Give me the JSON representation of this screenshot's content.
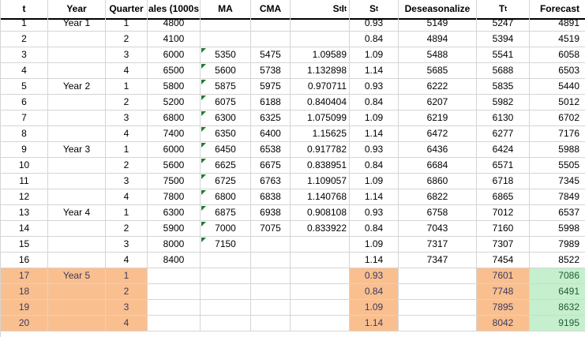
{
  "app": {
    "description": "Spreadsheet: quarterly sales seasonal decomposition and Year 5 forecast"
  },
  "colors": {
    "grid_line": "#d5d5d5",
    "header_border": "#000000",
    "future_row_fill": "#FABF8F",
    "future_row_text": "#3b3a60",
    "forecast_fill": "#C6EFCE",
    "forecast_text": "#1f5b33",
    "error_indicator": "#1e7b34"
  },
  "table": {
    "future_orange_columns": [
      "t",
      "year",
      "quarter",
      "st",
      "tt"
    ],
    "future_green_column": "forecast",
    "columns": [
      {
        "id": "t",
        "label": "t",
        "align": "c"
      },
      {
        "id": "year",
        "label": "Year",
        "align": "c"
      },
      {
        "id": "quarter",
        "label": "Quarter",
        "align": "c"
      },
      {
        "id": "sales",
        "label": "ales (1000s",
        "align": "c",
        "note": "clipped 'Sales (1000s)' header"
      },
      {
        "id": "ma",
        "label": "MA",
        "align": "c"
      },
      {
        "id": "cma",
        "label": "CMA",
        "align": "c"
      },
      {
        "id": "stit",
        "label_parts": [
          {
            "text": "S"
          },
          {
            "text": "t",
            "sub": true
          },
          {
            "text": "I"
          },
          {
            "text": "t",
            "sub": true
          }
        ],
        "align": "r",
        "pad": 3
      },
      {
        "id": "st",
        "label_parts": [
          {
            "text": "S"
          },
          {
            "text": "t",
            "sub": true
          }
        ],
        "align": "c"
      },
      {
        "id": "deseason",
        "label": "Deseasonalize",
        "align": "c"
      },
      {
        "id": "tt",
        "label_parts": [
          {
            "text": "T"
          },
          {
            "text": "t",
            "sub": true
          }
        ],
        "align": "c"
      },
      {
        "id": "forecast",
        "label": "Forecast",
        "align": "r",
        "pad": 7
      }
    ],
    "rows": [
      {
        "t": "1",
        "year": "Year 1",
        "quarter": "1",
        "sales": "4800",
        "ma": "",
        "cma": "",
        "stit": "",
        "st": "0.93",
        "deseason": "5149",
        "tt": "5247",
        "forecast": "4891",
        "ma_triangle": false,
        "future": false
      },
      {
        "t": "2",
        "year": "",
        "quarter": "2",
        "sales": "4100",
        "ma": "",
        "cma": "",
        "stit": "",
        "st": "0.84",
        "deseason": "4894",
        "tt": "5394",
        "forecast": "4519",
        "ma_triangle": false,
        "future": false
      },
      {
        "t": "3",
        "year": "",
        "quarter": "3",
        "sales": "6000",
        "ma": "5350",
        "cma": "5475",
        "stit": "1.09589",
        "st": "1.09",
        "deseason": "5488",
        "tt": "5541",
        "forecast": "6058",
        "ma_triangle": true,
        "future": false
      },
      {
        "t": "4",
        "year": "",
        "quarter": "4",
        "sales": "6500",
        "ma": "5600",
        "cma": "5738",
        "stit": "1.132898",
        "st": "1.14",
        "deseason": "5685",
        "tt": "5688",
        "forecast": "6503",
        "ma_triangle": true,
        "future": false
      },
      {
        "t": "5",
        "year": "Year 2",
        "quarter": "1",
        "sales": "5800",
        "ma": "5875",
        "cma": "5975",
        "stit": "0.970711",
        "st": "0.93",
        "deseason": "6222",
        "tt": "5835",
        "forecast": "5440",
        "ma_triangle": true,
        "future": false
      },
      {
        "t": "6",
        "year": "",
        "quarter": "2",
        "sales": "5200",
        "ma": "6075",
        "cma": "6188",
        "stit": "0.840404",
        "st": "0.84",
        "deseason": "6207",
        "tt": "5982",
        "forecast": "5012",
        "ma_triangle": true,
        "future": false
      },
      {
        "t": "7",
        "year": "",
        "quarter": "3",
        "sales": "6800",
        "ma": "6300",
        "cma": "6325",
        "stit": "1.075099",
        "st": "1.09",
        "deseason": "6219",
        "tt": "6130",
        "forecast": "6702",
        "ma_triangle": true,
        "future": false
      },
      {
        "t": "8",
        "year": "",
        "quarter": "4",
        "sales": "7400",
        "ma": "6350",
        "cma": "6400",
        "stit": "1.15625",
        "st": "1.14",
        "deseason": "6472",
        "tt": "6277",
        "forecast": "7176",
        "ma_triangle": true,
        "future": false
      },
      {
        "t": "9",
        "year": "Year 3",
        "quarter": "1",
        "sales": "6000",
        "ma": "6450",
        "cma": "6538",
        "stit": "0.917782",
        "st": "0.93",
        "deseason": "6436",
        "tt": "6424",
        "forecast": "5988",
        "ma_triangle": true,
        "future": false
      },
      {
        "t": "10",
        "year": "",
        "quarter": "2",
        "sales": "5600",
        "ma": "6625",
        "cma": "6675",
        "stit": "0.838951",
        "st": "0.84",
        "deseason": "6684",
        "tt": "6571",
        "forecast": "5505",
        "ma_triangle": true,
        "future": false
      },
      {
        "t": "11",
        "year": "",
        "quarter": "3",
        "sales": "7500",
        "ma": "6725",
        "cma": "6763",
        "stit": "1.109057",
        "st": "1.09",
        "deseason": "6860",
        "tt": "6718",
        "forecast": "7345",
        "ma_triangle": true,
        "future": false
      },
      {
        "t": "12",
        "year": "",
        "quarter": "4",
        "sales": "7800",
        "ma": "6800",
        "cma": "6838",
        "stit": "1.140768",
        "st": "1.14",
        "deseason": "6822",
        "tt": "6865",
        "forecast": "7849",
        "ma_triangle": true,
        "future": false
      },
      {
        "t": "13",
        "year": "Year 4",
        "quarter": "1",
        "sales": "6300",
        "ma": "6875",
        "cma": "6938",
        "stit": "0.908108",
        "st": "0.93",
        "deseason": "6758",
        "tt": "7012",
        "forecast": "6537",
        "ma_triangle": true,
        "future": false
      },
      {
        "t": "14",
        "year": "",
        "quarter": "2",
        "sales": "5900",
        "ma": "7000",
        "cma": "7075",
        "stit": "0.833922",
        "st": "0.84",
        "deseason": "7043",
        "tt": "7160",
        "forecast": "5998",
        "ma_triangle": true,
        "future": false
      },
      {
        "t": "15",
        "year": "",
        "quarter": "3",
        "sales": "8000",
        "ma": "7150",
        "cma": "",
        "stit": "",
        "st": "1.09",
        "deseason": "7317",
        "tt": "7307",
        "forecast": "7989",
        "ma_triangle": true,
        "future": false
      },
      {
        "t": "16",
        "year": "",
        "quarter": "4",
        "sales": "8400",
        "ma": "",
        "cma": "",
        "stit": "",
        "st": "1.14",
        "deseason": "7347",
        "tt": "7454",
        "forecast": "8522",
        "ma_triangle": false,
        "future": false
      },
      {
        "t": "17",
        "year": "Year 5",
        "quarter": "1",
        "sales": "",
        "ma": "",
        "cma": "",
        "stit": "",
        "st": "0.93",
        "deseason": "",
        "tt": "7601",
        "forecast": "7086",
        "ma_triangle": false,
        "future": true
      },
      {
        "t": "18",
        "year": "",
        "quarter": "2",
        "sales": "",
        "ma": "",
        "cma": "",
        "stit": "",
        "st": "0.84",
        "deseason": "",
        "tt": "7748",
        "forecast": "6491",
        "ma_triangle": false,
        "future": true
      },
      {
        "t": "19",
        "year": "",
        "quarter": "3",
        "sales": "",
        "ma": "",
        "cma": "",
        "stit": "",
        "st": "1.09",
        "deseason": "",
        "tt": "7895",
        "forecast": "8632",
        "ma_triangle": false,
        "future": true
      },
      {
        "t": "20",
        "year": "",
        "quarter": "4",
        "sales": "",
        "ma": "",
        "cma": "",
        "stit": "",
        "st": "1.14",
        "deseason": "",
        "tt": "8042",
        "forecast": "9195",
        "ma_triangle": false,
        "future": true
      }
    ]
  }
}
